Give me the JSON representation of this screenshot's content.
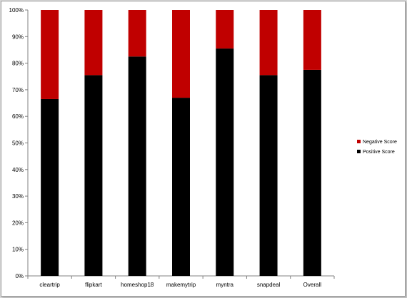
{
  "chart_data": {
    "type": "bar",
    "stacked": true,
    "categories": [
      "cleartrip",
      "flipkart",
      "homeshop18",
      "makemytrip",
      "myntra",
      "snapdeal",
      "Overall"
    ],
    "series": [
      {
        "name": "Positive Score",
        "values": [
          66.5,
          75.5,
          82.5,
          67,
          85.5,
          75.5,
          77.5
        ],
        "color": "#000000"
      },
      {
        "name": "Negative Score",
        "values": [
          33.5,
          24.5,
          17.5,
          33,
          14.5,
          24.5,
          22.5
        ],
        "color": "#c00000"
      }
    ],
    "y_ticks": [
      "0%",
      "10%",
      "20%",
      "30%",
      "40%",
      "50%",
      "60%",
      "70%",
      "80%",
      "90%",
      "100%"
    ],
    "ylim": [
      0,
      100
    ],
    "grid": false,
    "legend": {
      "position": "right",
      "order": [
        "Negative Score",
        "Positive Score"
      ]
    }
  }
}
